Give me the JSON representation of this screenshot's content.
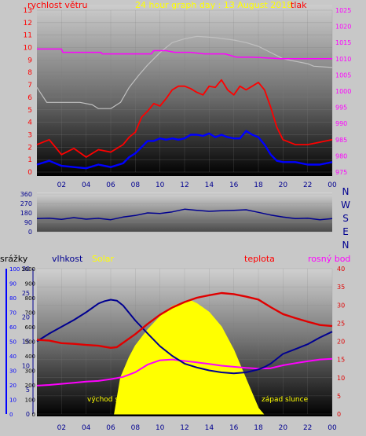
{
  "page": {
    "title": "24 hour graph day : 13 August 2018"
  },
  "colors": {
    "wind_speed": "#ff0000",
    "wind_avg": "#0000ff",
    "pressure": "#ff00ff",
    "gust_bg": "#c0c0c0",
    "wind_dir": "#000090",
    "temperature": "#e00000",
    "humidity": "#000090",
    "dew_point": "#ff00ff",
    "solar": "#ffff00",
    "rain_axis": "#0000ff",
    "page_bg": "#c8c8c8"
  },
  "chart_data": [
    {
      "id": "wind_pressure",
      "type": "line",
      "title": "24 hour graph day : 13 August 2018",
      "y_left_label": "rychlost větru",
      "y_right_label": "tlak",
      "x_ticks": [
        "02",
        "04",
        "06",
        "08",
        "10",
        "12",
        "14",
        "16",
        "18",
        "20",
        "22",
        "00"
      ],
      "x_range": [
        0,
        24
      ],
      "y_left_range": [
        0,
        13
      ],
      "y_left_ticks": [
        0,
        1,
        2,
        3,
        4,
        5,
        6,
        7,
        8,
        9,
        10,
        11,
        12,
        13
      ],
      "y_right_range": [
        975,
        1025
      ],
      "y_right_ticks": [
        975,
        980,
        985,
        990,
        995,
        1000,
        1005,
        1010,
        1015,
        1020,
        1025
      ],
      "series": [
        {
          "key": "pressure",
          "axis": "right",
          "x": [
            0,
            2,
            2.1,
            5.2,
            5.3,
            7.2,
            9.3,
            9.5,
            10.5,
            11.2,
            12.5,
            13.6,
            15.3,
            16.2,
            17.5,
            19.8,
            24
          ],
          "y": [
            1013,
            1013,
            1012,
            1012,
            1011.5,
            1011.5,
            1011.5,
            1012.5,
            1012.5,
            1012,
            1012,
            1011.5,
            1011.5,
            1010.5,
            1010.5,
            1010,
            1010
          ]
        },
        {
          "key": "gust_envelope",
          "axis": "left",
          "x": [
            0,
            0.8,
            3.5,
            4.5,
            5.0,
            6.0,
            6.8,
            7.5,
            8.3,
            9.0,
            10.0,
            11.0,
            12.0,
            13.0,
            14.5,
            16.0,
            17.0,
            18.0,
            19.0,
            20.0,
            21.0,
            22.0,
            22.5,
            24
          ],
          "y": [
            6.8,
            5.6,
            5.6,
            5.4,
            5.1,
            5.1,
            5.6,
            6.8,
            7.8,
            8.6,
            9.6,
            10.4,
            10.7,
            10.9,
            10.8,
            10.6,
            10.4,
            10.1,
            9.6,
            9.1,
            8.9,
            8.7,
            8.5,
            8.4
          ]
        },
        {
          "key": "wind_speed_max",
          "axis": "left",
          "x": [
            0,
            1,
            2,
            3,
            4,
            5,
            6,
            7,
            7.5,
            8,
            8.5,
            9,
            9.5,
            10,
            10.5,
            11,
            11.5,
            12,
            12.5,
            13,
            13.5,
            14,
            14.5,
            15,
            15.5,
            16,
            16.5,
            17,
            17.5,
            18,
            18.5,
            19,
            19.5,
            20,
            21,
            22,
            23,
            24
          ],
          "y": [
            2.2,
            2.6,
            1.4,
            1.9,
            1.2,
            1.8,
            1.6,
            2.2,
            2.8,
            3.2,
            4.4,
            4.9,
            5.5,
            5.3,
            5.9,
            6.6,
            6.9,
            6.9,
            6.7,
            6.4,
            6.2,
            6.9,
            6.8,
            7.4,
            6.6,
            6.2,
            6.9,
            6.6,
            6.9,
            7.2,
            6.6,
            5.2,
            3.6,
            2.6,
            2.2,
            2.2,
            2.4,
            2.6
          ]
        },
        {
          "key": "wind_speed_avg",
          "axis": "left",
          "x": [
            0,
            1,
            2,
            3,
            4,
            5,
            6,
            7,
            7.5,
            8,
            8.5,
            9,
            9.5,
            10,
            10.5,
            11,
            11.5,
            12,
            12.5,
            13,
            13.5,
            14,
            14.5,
            15,
            15.5,
            16,
            16.5,
            17,
            17.5,
            18,
            18.5,
            19,
            19.5,
            20,
            21,
            22,
            23,
            24
          ],
          "y": [
            0.6,
            0.9,
            0.5,
            0.4,
            0.3,
            0.6,
            0.4,
            0.7,
            1.2,
            1.5,
            2.0,
            2.5,
            2.5,
            2.7,
            2.6,
            2.7,
            2.6,
            2.7,
            3.0,
            3.0,
            2.9,
            3.1,
            2.8,
            3.0,
            2.8,
            2.7,
            2.7,
            3.3,
            3.0,
            2.8,
            2.2,
            1.4,
            0.9,
            0.8,
            0.8,
            0.6,
            0.6,
            0.8
          ]
        }
      ]
    },
    {
      "id": "wind_direction",
      "type": "line",
      "x_range": [
        0,
        24
      ],
      "y_range": [
        0,
        360
      ],
      "y_ticks": [
        0,
        90,
        180,
        270,
        360
      ],
      "compass_labels": [
        "N",
        "W",
        "S",
        "E",
        "N"
      ],
      "series": [
        {
          "key": "wind_dir",
          "x": [
            0,
            1,
            2,
            3,
            4,
            5,
            6,
            7,
            8,
            9,
            10,
            11,
            12,
            13,
            14,
            15,
            16,
            17,
            18,
            19,
            20,
            21,
            22,
            23,
            24
          ],
          "y": [
            125,
            130,
            118,
            135,
            120,
            128,
            115,
            140,
            155,
            180,
            175,
            190,
            215,
            205,
            195,
            200,
            205,
            210,
            185,
            160,
            140,
            125,
            130,
            115,
            125
          ]
        }
      ]
    },
    {
      "id": "temp_humidity_solar",
      "type": "line",
      "labels": {
        "rain": "srážky",
        "humidity": "vlhkost",
        "solar": "Solar",
        "temperature": "teplota",
        "dew_point": "rosný bod",
        "sunrise": "východ slunce",
        "sunset": "západ slunce"
      },
      "x_ticks": [
        "02",
        "04",
        "06",
        "08",
        "10",
        "12",
        "14",
        "16",
        "18",
        "20",
        "22",
        "00"
      ],
      "x_range": [
        0,
        24
      ],
      "rain_ticks": [
        0,
        10,
        20,
        30,
        40,
        50,
        60,
        70,
        80,
        90,
        100
      ],
      "humidity_ticks": [
        0,
        5,
        10,
        15,
        20,
        25,
        30
      ],
      "solar_ticks": [
        0,
        100,
        200,
        300,
        400,
        500,
        600,
        700,
        800,
        900,
        1000
      ],
      "temp_ticks": [
        0,
        5,
        10,
        15,
        20,
        25,
        30,
        35,
        40
      ],
      "rain_range": [
        0,
        100
      ],
      "humidity_range": [
        0,
        30
      ],
      "temp_range": [
        0,
        40
      ],
      "solar_range": [
        0,
        1000
      ],
      "series": [
        {
          "key": "temperature",
          "axis": "temp",
          "x": [
            0,
            1,
            2,
            3,
            4,
            5,
            6,
            6.5,
            7,
            8,
            9,
            10,
            11,
            12,
            13,
            14,
            15,
            16,
            17,
            18,
            19,
            20,
            21,
            22,
            23,
            24
          ],
          "y": [
            20.4,
            20.2,
            19.5,
            19.3,
            19.0,
            18.8,
            18.2,
            18.4,
            19.6,
            22,
            24.8,
            27.3,
            29.3,
            30.8,
            32.0,
            32.7,
            33.3,
            33.0,
            32.3,
            31.5,
            29.4,
            27.5,
            26.4,
            25.4,
            24.5,
            24.2
          ]
        },
        {
          "key": "humidity",
          "axis": "humidity",
          "x": [
            0,
            1,
            2,
            3,
            4,
            5,
            5.5,
            6,
            6.5,
            7,
            8,
            9,
            10,
            11,
            12,
            13,
            14,
            15,
            16,
            17,
            18,
            18.5,
            19,
            20,
            21,
            22,
            23,
            24
          ],
          "y": [
            15,
            16.6,
            18.0,
            19.4,
            21.0,
            22.8,
            23.3,
            23.6,
            23.4,
            22.4,
            19.3,
            16.6,
            14.0,
            12.0,
            10.4,
            9.6,
            9.0,
            8.6,
            8.4,
            8.6,
            9.2,
            9.7,
            10.4,
            12.4,
            13.4,
            14.4,
            15.8,
            17.0
          ]
        },
        {
          "key": "dew_point",
          "axis": "temp",
          "x": [
            0,
            1,
            2,
            3,
            4,
            5,
            6,
            7,
            8,
            9,
            10,
            11,
            12,
            13,
            14,
            15,
            16,
            17,
            18,
            19,
            20,
            21,
            22,
            23,
            24
          ],
          "y": [
            7.8,
            8.0,
            8.3,
            8.6,
            8.9,
            9.1,
            9.6,
            10.2,
            11.5,
            13.6,
            14.8,
            15.0,
            14.6,
            14.2,
            13.8,
            13.3,
            13.0,
            12.7,
            12.5,
            12.6,
            13.4,
            14.0,
            14.5,
            15.0,
            15.2
          ]
        },
        {
          "key": "solar",
          "axis": "solar",
          "x": [
            6.3,
            6.8,
            7.5,
            8.0,
            9.0,
            10.0,
            11.0,
            12.0,
            12.5,
            13.0,
            14.0,
            15.0,
            16.0,
            17.0,
            18.0,
            18.4
          ],
          "y": [
            0,
            250,
            390,
            470,
            580,
            670,
            740,
            770,
            780,
            760,
            700,
            600,
            440,
            240,
            40,
            0
          ]
        }
      ]
    }
  ]
}
